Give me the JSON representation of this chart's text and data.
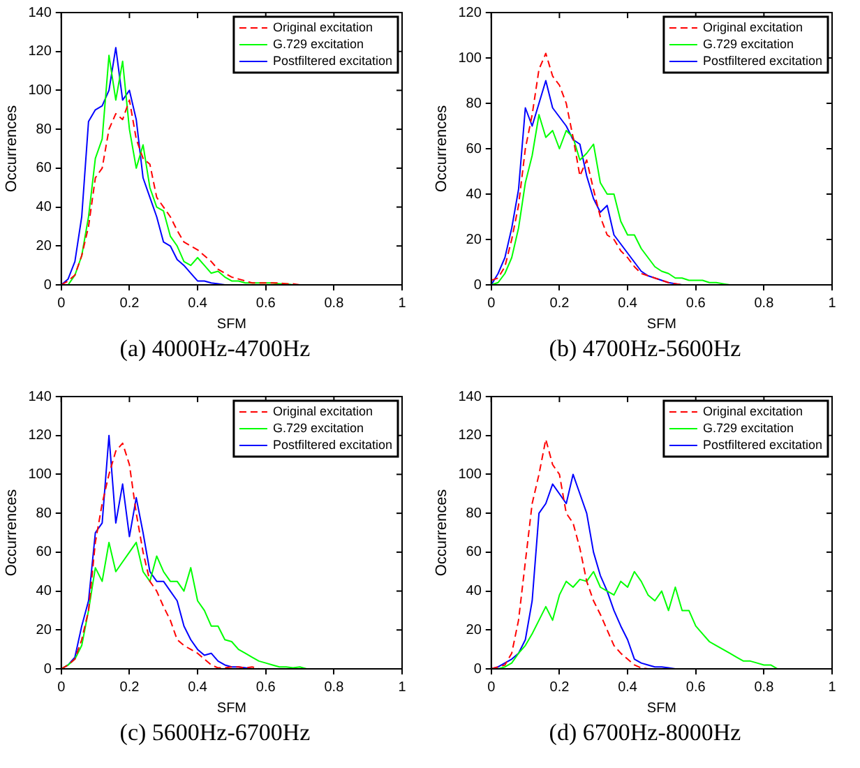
{
  "chart_data": [
    {
      "type": "line",
      "title": "(a) 4000Hz-4700Hz",
      "xlabel": "SFM",
      "ylabel": "Occurrences",
      "xlim": [
        0,
        1
      ],
      "xticks": [
        0,
        0.2,
        0.4,
        0.6,
        0.8,
        1
      ],
      "ylim": [
        0,
        140
      ],
      "yticks": [
        0,
        20,
        40,
        60,
        80,
        100,
        120,
        140
      ],
      "grid": false,
      "legend": "top right",
      "marker": "none",
      "series": [
        {
          "name": "Original excitation",
          "color": "#ff0000",
          "line_style": "dashed",
          "x": [
            0,
            0.02,
            0.04,
            0.06,
            0.08,
            0.1,
            0.12,
            0.14,
            0.16,
            0.18,
            0.2,
            0.22,
            0.24,
            0.26,
            0.28,
            0.3,
            0.32,
            0.34,
            0.36,
            0.38,
            0.4,
            0.42,
            0.44,
            0.46,
            0.48,
            0.5,
            0.52,
            0.54,
            0.56,
            0.58,
            0.6,
            0.62,
            0.64,
            0.66,
            0.68,
            0.7
          ],
          "values": [
            0,
            2,
            5,
            15,
            30,
            55,
            60,
            80,
            88,
            85,
            95,
            75,
            65,
            62,
            45,
            40,
            35,
            28,
            22,
            20,
            18,
            15,
            12,
            8,
            6,
            4,
            3,
            2,
            1,
            1,
            1,
            1,
            1,
            0.5,
            0.5,
            0
          ]
        },
        {
          "name": "G.729 excitation",
          "color": "#00ff00",
          "line_style": "solid",
          "x": [
            0.02,
            0.04,
            0.06,
            0.08,
            0.1,
            0.12,
            0.14,
            0.16,
            0.18,
            0.2,
            0.22,
            0.24,
            0.26,
            0.28,
            0.3,
            0.32,
            0.34,
            0.36,
            0.38,
            0.4,
            0.42,
            0.44,
            0.46,
            0.48,
            0.5,
            0.52,
            0.54,
            0.56,
            0.58,
            0.6,
            0.62,
            0.64,
            0.66,
            0.68
          ],
          "values": [
            0,
            5,
            15,
            35,
            65,
            75,
            118,
            95,
            115,
            80,
            60,
            72,
            50,
            40,
            38,
            25,
            20,
            12,
            10,
            14,
            10,
            6,
            7,
            4,
            2,
            2,
            1,
            1,
            1,
            1,
            1,
            0.5,
            0.5,
            0
          ]
        },
        {
          "name": "Postfiltered excitation",
          "color": "#0000ff",
          "line_style": "solid",
          "x": [
            0,
            0.02,
            0.04,
            0.06,
            0.08,
            0.1,
            0.12,
            0.14,
            0.16,
            0.18,
            0.2,
            0.22,
            0.24,
            0.26,
            0.28,
            0.3,
            0.32,
            0.34,
            0.36,
            0.38,
            0.4,
            0.42,
            0.44,
            0.46,
            0.48
          ],
          "values": [
            0,
            3,
            12,
            35,
            84,
            90,
            92,
            100,
            122,
            95,
            100,
            85,
            55,
            45,
            35,
            22,
            20,
            13,
            10,
            6,
            2,
            2,
            1,
            0.5,
            0
          ]
        }
      ]
    },
    {
      "type": "line",
      "title": "(b) 4700Hz-5600Hz",
      "xlabel": "SFM",
      "ylabel": "Occurrences",
      "xlim": [
        0,
        1
      ],
      "xticks": [
        0,
        0.2,
        0.4,
        0.6,
        0.8,
        1
      ],
      "ylim": [
        0,
        120
      ],
      "yticks": [
        0,
        20,
        40,
        60,
        80,
        100,
        120
      ],
      "grid": false,
      "legend": "top right",
      "marker": "none",
      "series": [
        {
          "name": "Original excitation",
          "color": "#ff0000",
          "line_style": "dashed",
          "x": [
            0,
            0.02,
            0.04,
            0.06,
            0.08,
            0.1,
            0.12,
            0.14,
            0.16,
            0.18,
            0.2,
            0.22,
            0.24,
            0.26,
            0.28,
            0.3,
            0.32,
            0.34,
            0.36,
            0.38,
            0.4,
            0.42,
            0.44,
            0.46,
            0.48,
            0.5,
            0.52,
            0.54,
            0.56
          ],
          "values": [
            2,
            3,
            8,
            20,
            35,
            60,
            75,
            95,
            102,
            92,
            88,
            80,
            65,
            48,
            55,
            42,
            30,
            22,
            20,
            15,
            12,
            8,
            5,
            4,
            3,
            2,
            1,
            0.5,
            0
          ]
        },
        {
          "name": "G.729 excitation",
          "color": "#00ff00",
          "line_style": "solid",
          "x": [
            0,
            0.02,
            0.04,
            0.06,
            0.08,
            0.1,
            0.12,
            0.14,
            0.16,
            0.18,
            0.2,
            0.22,
            0.24,
            0.26,
            0.28,
            0.3,
            0.32,
            0.34,
            0.36,
            0.38,
            0.4,
            0.42,
            0.44,
            0.46,
            0.48,
            0.5,
            0.52,
            0.54,
            0.56,
            0.58,
            0.6,
            0.62,
            0.64,
            0.66,
            0.68,
            0.7
          ],
          "values": [
            0,
            1,
            5,
            12,
            25,
            45,
            57,
            75,
            65,
            68,
            60,
            68,
            65,
            55,
            58,
            62,
            45,
            40,
            40,
            28,
            22,
            22,
            16,
            12,
            8,
            6,
            5,
            3,
            3,
            2,
            2,
            2,
            1,
            1,
            0.5,
            0
          ]
        },
        {
          "name": "Postfiltered excitation",
          "color": "#0000ff",
          "line_style": "solid",
          "x": [
            0,
            0.02,
            0.04,
            0.06,
            0.08,
            0.1,
            0.12,
            0.14,
            0.16,
            0.18,
            0.2,
            0.22,
            0.24,
            0.26,
            0.28,
            0.3,
            0.32,
            0.34,
            0.36,
            0.38,
            0.4,
            0.42,
            0.44,
            0.46,
            0.48,
            0.5,
            0.52,
            0.54,
            0.56
          ],
          "values": [
            0,
            5,
            12,
            25,
            42,
            78,
            70,
            80,
            90,
            78,
            74,
            70,
            64,
            62,
            48,
            38,
            32,
            35,
            22,
            18,
            14,
            10,
            6,
            4,
            3,
            2,
            1,
            0.5,
            0
          ]
        }
      ]
    },
    {
      "type": "line",
      "title": "(c) 5600Hz-6700Hz",
      "xlabel": "SFM",
      "ylabel": "Occurrences",
      "xlim": [
        0,
        1
      ],
      "xticks": [
        0,
        0.2,
        0.4,
        0.6,
        0.8,
        1
      ],
      "ylim": [
        0,
        140
      ],
      "yticks": [
        0,
        20,
        40,
        60,
        80,
        100,
        120,
        140
      ],
      "grid": false,
      "legend": "top right",
      "marker": "none",
      "series": [
        {
          "name": "Original excitation",
          "color": "#ff0000",
          "line_style": "dashed",
          "x": [
            0,
            0.02,
            0.04,
            0.06,
            0.08,
            0.1,
            0.12,
            0.14,
            0.16,
            0.18,
            0.2,
            0.22,
            0.24,
            0.26,
            0.28,
            0.3,
            0.32,
            0.34,
            0.36,
            0.38,
            0.4,
            0.42,
            0.44,
            0.46,
            0.48,
            0.5,
            0.52,
            0.54,
            0.56,
            0.58
          ],
          "values": [
            0,
            2,
            5,
            15,
            30,
            65,
            85,
            100,
            112,
            116,
            105,
            80,
            60,
            45,
            40,
            32,
            25,
            15,
            12,
            10,
            8,
            5,
            2,
            0.5,
            0.5,
            1,
            1,
            0.5,
            1,
            0
          ]
        },
        {
          "name": "G.729 excitation",
          "color": "#00ff00",
          "line_style": "solid",
          "x": [
            0,
            0.02,
            0.04,
            0.06,
            0.08,
            0.1,
            0.12,
            0.14,
            0.16,
            0.18,
            0.2,
            0.22,
            0.24,
            0.26,
            0.28,
            0.3,
            0.32,
            0.34,
            0.36,
            0.38,
            0.4,
            0.42,
            0.44,
            0.46,
            0.48,
            0.5,
            0.52,
            0.54,
            0.56,
            0.58,
            0.6,
            0.62,
            0.64,
            0.66,
            0.68,
            0.7,
            0.72
          ],
          "values": [
            0,
            2,
            5,
            12,
            30,
            52,
            45,
            65,
            50,
            55,
            60,
            65,
            50,
            45,
            58,
            50,
            45,
            45,
            40,
            52,
            35,
            30,
            22,
            22,
            15,
            14,
            10,
            8,
            6,
            4,
            3,
            2,
            1,
            1,
            0.5,
            1,
            0
          ]
        },
        {
          "name": "Postfiltered excitation",
          "color": "#0000ff",
          "line_style": "solid",
          "x": [
            0,
            0.02,
            0.04,
            0.06,
            0.08,
            0.1,
            0.12,
            0.14,
            0.16,
            0.18,
            0.2,
            0.22,
            0.24,
            0.26,
            0.28,
            0.3,
            0.32,
            0.34,
            0.36,
            0.38,
            0.4,
            0.42,
            0.44,
            0.46,
            0.48,
            0.5,
            0.52,
            0.54,
            0.56
          ],
          "values": [
            0,
            2,
            6,
            22,
            35,
            70,
            75,
            120,
            75,
            95,
            68,
            88,
            70,
            50,
            45,
            45,
            40,
            35,
            22,
            15,
            10,
            7,
            8,
            4,
            2,
            1,
            1,
            0.5,
            0
          ]
        }
      ]
    },
    {
      "type": "line",
      "title": "(d) 6700Hz-8000Hz",
      "xlabel": "SFM",
      "ylabel": "Occurrences",
      "xlim": [
        0,
        1
      ],
      "xticks": [
        0,
        0.2,
        0.4,
        0.6,
        0.8,
        1
      ],
      "ylim": [
        0,
        140
      ],
      "yticks": [
        0,
        20,
        40,
        60,
        80,
        100,
        120,
        140
      ],
      "grid": false,
      "legend": "top right",
      "marker": "none",
      "series": [
        {
          "name": "Original excitation",
          "color": "#ff0000",
          "line_style": "dashed",
          "x": [
            0,
            0.02,
            0.04,
            0.06,
            0.08,
            0.1,
            0.12,
            0.14,
            0.16,
            0.18,
            0.2,
            0.22,
            0.24,
            0.26,
            0.28,
            0.3,
            0.32,
            0.34,
            0.36,
            0.38,
            0.4,
            0.42,
            0.44,
            0.46
          ],
          "values": [
            0,
            1,
            2,
            8,
            25,
            55,
            85,
            100,
            118,
            105,
            100,
            80,
            75,
            62,
            45,
            35,
            28,
            20,
            12,
            8,
            5,
            2,
            0.5,
            0
          ]
        },
        {
          "name": "G.729 excitation",
          "color": "#00ff00",
          "line_style": "solid",
          "x": [
            0.02,
            0.04,
            0.06,
            0.08,
            0.1,
            0.12,
            0.14,
            0.16,
            0.18,
            0.2,
            0.22,
            0.24,
            0.26,
            0.28,
            0.3,
            0.32,
            0.34,
            0.36,
            0.38,
            0.4,
            0.42,
            0.44,
            0.46,
            0.48,
            0.5,
            0.52,
            0.54,
            0.56,
            0.58,
            0.6,
            0.62,
            0.64,
            0.66,
            0.68,
            0.7,
            0.72,
            0.74,
            0.76,
            0.78,
            0.8,
            0.82,
            0.84
          ],
          "values": [
            0,
            1,
            3,
            8,
            12,
            18,
            25,
            32,
            25,
            38,
            45,
            42,
            46,
            45,
            50,
            42,
            40,
            38,
            45,
            42,
            50,
            45,
            38,
            35,
            40,
            30,
            42,
            30,
            30,
            22,
            18,
            14,
            12,
            10,
            8,
            6,
            4,
            4,
            3,
            2,
            2,
            0
          ]
        },
        {
          "name": "Postfiltered excitation",
          "color": "#0000ff",
          "line_style": "solid",
          "x": [
            0,
            0.02,
            0.04,
            0.06,
            0.08,
            0.1,
            0.12,
            0.14,
            0.16,
            0.18,
            0.2,
            0.22,
            0.24,
            0.26,
            0.28,
            0.3,
            0.32,
            0.34,
            0.36,
            0.38,
            0.4,
            0.42,
            0.44,
            0.46,
            0.48,
            0.5,
            0.52,
            0.54
          ],
          "values": [
            0,
            1,
            3,
            5,
            8,
            15,
            35,
            80,
            85,
            95,
            90,
            85,
            100,
            90,
            80,
            60,
            48,
            40,
            30,
            22,
            15,
            5,
            3,
            2,
            1,
            1,
            0.5,
            0
          ]
        }
      ]
    }
  ]
}
